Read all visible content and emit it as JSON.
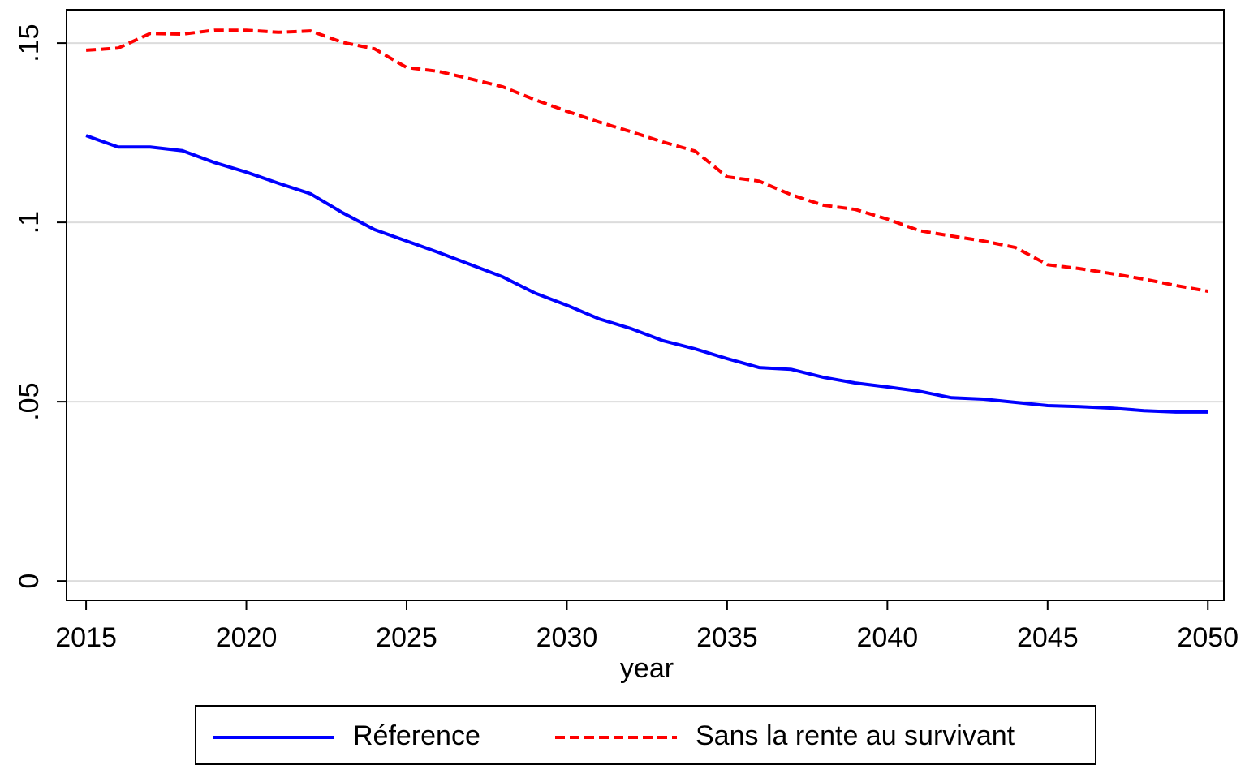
{
  "chart_data": {
    "type": "line",
    "x_label": "year",
    "x": [
      2015,
      2016,
      2017,
      2018,
      2019,
      2020,
      2021,
      2022,
      2023,
      2024,
      2025,
      2026,
      2027,
      2028,
      2029,
      2030,
      2031,
      2032,
      2033,
      2034,
      2035,
      2036,
      2037,
      2038,
      2039,
      2040,
      2041,
      2042,
      2043,
      2044,
      2045,
      2046,
      2047,
      2048,
      2049,
      2050
    ],
    "series": [
      {
        "name": "Réference",
        "color": "#0000ff",
        "dash": false,
        "values": [
          0.1242,
          0.121,
          0.121,
          0.12,
          0.1167,
          0.114,
          0.1109,
          0.108,
          0.1027,
          0.098,
          0.0948,
          0.0916,
          0.0882,
          0.0848,
          0.0803,
          0.0769,
          0.0731,
          0.0704,
          0.067,
          0.0647,
          0.062,
          0.0595,
          0.059,
          0.0568,
          0.0552,
          0.0541,
          0.0529,
          0.0511,
          0.0507,
          0.0498,
          0.0489,
          0.0486,
          0.0482,
          0.0475,
          0.0471,
          0.0471
        ]
      },
      {
        "name": "Sans la rente au survivant",
        "color": "#ff0000",
        "dash": true,
        "values": [
          0.148,
          0.1486,
          0.1527,
          0.1525,
          0.1536,
          0.1536,
          0.153,
          0.1534,
          0.1502,
          0.1484,
          0.1432,
          0.1421,
          0.14,
          0.1378,
          0.1342,
          0.131,
          0.128,
          0.1253,
          0.1224,
          0.1199,
          0.1127,
          0.1115,
          0.1077,
          0.1048,
          0.1036,
          0.1009,
          0.0977,
          0.0962,
          0.0948,
          0.093,
          0.0882,
          0.0871,
          0.0857,
          0.0842,
          0.0824,
          0.0808
        ]
      }
    ],
    "xlim": [
      2014.39,
      2050.5
    ],
    "xticks": [
      2015,
      2020,
      2025,
      2030,
      2035,
      2040,
      2045,
      2050
    ],
    "ylim": [
      -0.0054,
      0.1593
    ],
    "yticks": [
      0,
      {
        "value": 0.05,
        "label": ".05"
      },
      {
        "value": 0.1,
        "label": ".1"
      },
      {
        "value": 0.15,
        "label": ".15"
      }
    ],
    "grid": true,
    "legend": "bottom"
  }
}
